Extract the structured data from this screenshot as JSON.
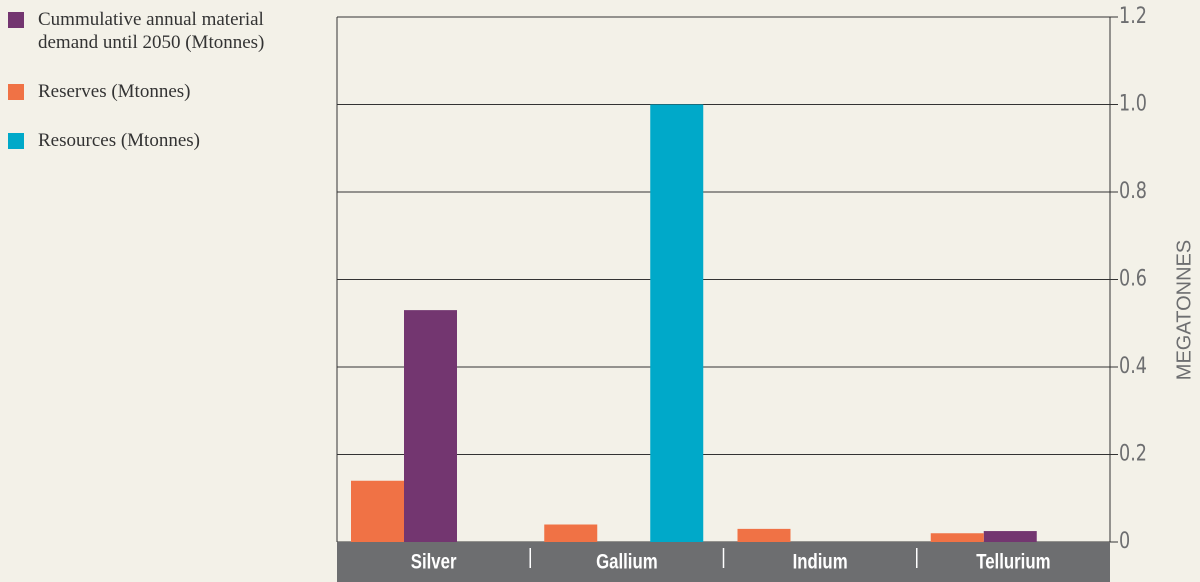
{
  "chart_data": {
    "type": "bar",
    "y_axis_label": "MEGATONNES",
    "categories": [
      "Silver",
      "Gallium",
      "Indium",
      "Tellurium"
    ],
    "series": [
      {
        "name": "Cummulative annual material demand until 2050 (Mtonnes)",
        "color": "#733670",
        "values": [
          0.53,
          null,
          null,
          0.025
        ]
      },
      {
        "name": "Reserves (Mtonnes)",
        "color": "#f07245",
        "values": [
          0.14,
          0.04,
          0.03,
          0.02
        ]
      },
      {
        "name": "Resources (Mtonnes)",
        "color": "#00a9c9",
        "values": [
          null,
          1,
          null,
          null
        ]
      }
    ],
    "ylim": [
      0,
      1.2
    ],
    "yticks": [
      0,
      0.2,
      0.4,
      0.6,
      0.8,
      {
        "value": 1,
        "label": "1.0"
      },
      1.2
    ],
    "grid": true,
    "legend": "left"
  }
}
